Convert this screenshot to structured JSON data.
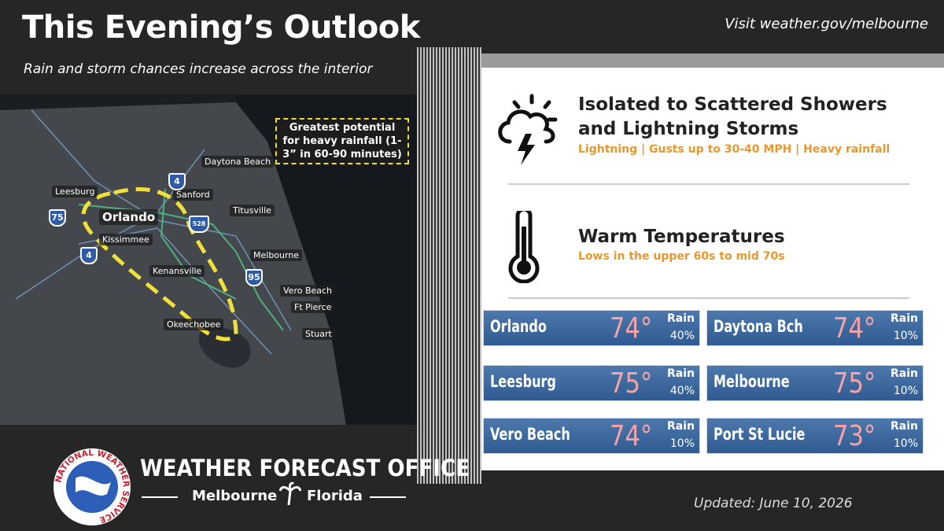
{
  "header": {
    "title": "This Evening’s Outlook",
    "link": "Visit weather.gov/melbourne",
    "subtitle": "Rain and storm chances increase across the interior"
  },
  "map": {
    "callout": "Greatest potential for heavy rainfall (1-3” in 60-90 minutes)",
    "cities": [
      "Daytona Beach",
      "Leesburg",
      "Sanford",
      "Orlando",
      "Titusville",
      "Kissimmee",
      "Melbourne",
      "Kenansville",
      "Vero Beach",
      "Ft Pierce",
      "Okeechobee",
      "Stuart"
    ],
    "shields": [
      "4",
      "75",
      "4",
      "95",
      "528"
    ]
  },
  "hazards": [
    {
      "title": "Isolated to Scattered Showers and Lightning Storms",
      "detail": "Lightning | Gusts up to 30-40 MPH | Heavy rainfall"
    },
    {
      "title": "Warm Temperatures",
      "detail": "Lows in the upper 60s to mid 70s"
    }
  ],
  "forecasts": [
    {
      "city": "Orlando",
      "temp": "74°",
      "rain_label": "Rain",
      "rain": "40%"
    },
    {
      "city": "Daytona Bch",
      "temp": "74°",
      "rain_label": "Rain",
      "rain": "10%"
    },
    {
      "city": "Leesburg",
      "temp": "75°",
      "rain_label": "Rain",
      "rain": "40%"
    },
    {
      "city": "Melbourne",
      "temp": "75°",
      "rain_label": "Rain",
      "rain": "10%"
    },
    {
      "city": "Vero Beach",
      "temp": "74°",
      "rain_label": "Rain",
      "rain": "10%"
    },
    {
      "city": "Port St Lucie",
      "temp": "73°",
      "rain_label": "Rain",
      "rain": "10%"
    }
  ],
  "footer": {
    "logo": "NATIONAL WEATHER SERVICE",
    "office": "WEATHER FORECAST OFFICE",
    "city": "Melbourne",
    "state": "Florida",
    "updated": "Updated: June 10, 2026"
  }
}
